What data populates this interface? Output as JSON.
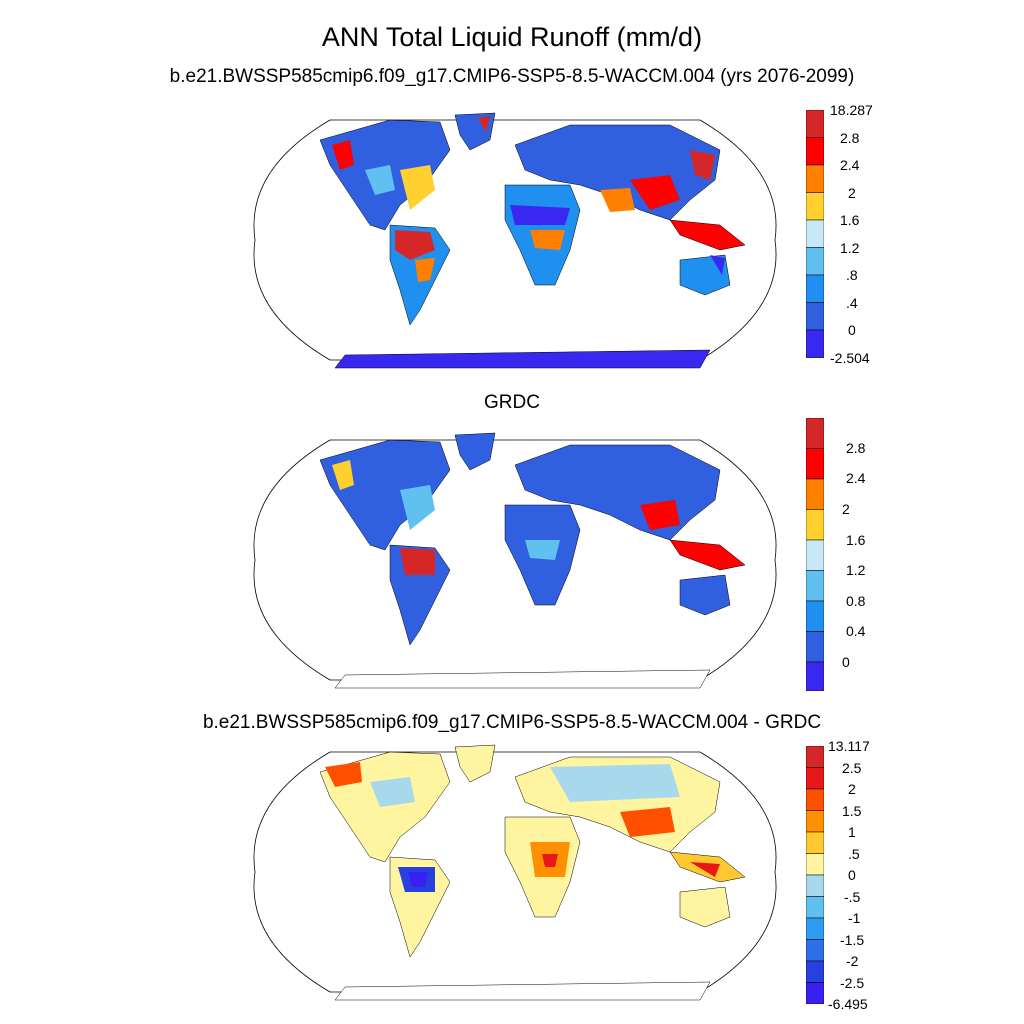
{
  "title": "ANN Total Liquid Runoff (mm/d)",
  "panels": [
    {
      "id": "model",
      "title": "b.e21.BWSSP585cmip6.f09_g17.CMIP6-SSP5-8.5-WACCM.004 (yrs 2076-2099)",
      "colorbar_labels": [
        "18.287",
        "2.8",
        "2.4",
        "2",
        "1.6",
        "1.2",
        ".8",
        ".4",
        "0",
        "-2.504"
      ],
      "colors": [
        "#d62728",
        "#ff0000",
        "#ff8000",
        "#ffd030",
        "#c8e8f8",
        "#60c0f0",
        "#2090f0",
        "#3060e0",
        "#3828f0"
      ]
    },
    {
      "id": "grdc",
      "title": "GRDC",
      "colorbar_labels": [
        "2.8",
        "2.4",
        "2",
        "1.6",
        "1.2",
        "0.8",
        "0.4",
        "0"
      ],
      "colors": [
        "#d62728",
        "#ff0000",
        "#ff8000",
        "#ffd030",
        "#c8e8f8",
        "#60c0f0",
        "#2090f0",
        "#3060e0",
        "#3828f0"
      ]
    },
    {
      "id": "diff",
      "title": "b.e21.BWSSP585cmip6.f09_g17.CMIP6-SSP5-8.5-WACCM.004 - GRDC",
      "colorbar_labels": [
        "13.117",
        "2.5",
        "2",
        "1.5",
        "1",
        ".5",
        "0",
        "-.5",
        "-1",
        "-1.5",
        "-2",
        "-2.5",
        "-6.495"
      ],
      "colors": [
        "#d62728",
        "#e81818",
        "#ff5000",
        "#ff9000",
        "#ffc830",
        "#fff5a0",
        "#a8d8ec",
        "#60c0f0",
        "#2e9cf0",
        "#2e70e8",
        "#2840e0",
        "#3820f0"
      ]
    }
  ]
}
